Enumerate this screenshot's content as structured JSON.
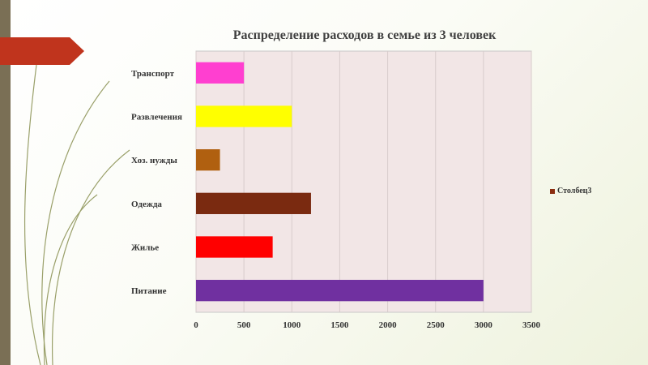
{
  "slide": {
    "accent_color": "#c0341d",
    "strip_color": "#7a6f55",
    "background_tint": "#eef2dd"
  },
  "chart_data": {
    "type": "bar",
    "orientation": "horizontal",
    "title": "Распределение расходов в семье из 3 человек",
    "categories": [
      "Транспорт",
      "Развлечения",
      "Хоз. нужды",
      "Одежда",
      "Жилье",
      "Питание"
    ],
    "series": [
      {
        "name": "Столбец3",
        "values": [
          500,
          1000,
          250,
          1200,
          800,
          3000
        ],
        "colors": [
          "#ff3fd0",
          "#ffff00",
          "#b06010",
          "#7a2a10",
          "#ff0000",
          "#7030a0"
        ]
      }
    ],
    "xlim": [
      0,
      3500
    ],
    "xticks": [
      "0",
      "500",
      "1000",
      "1500",
      "2000",
      "2500",
      "3000",
      "3500"
    ],
    "grid": true,
    "plot_background": "#f2e6e6",
    "legend_position": "right",
    "legend_color": "#8b2e10"
  }
}
